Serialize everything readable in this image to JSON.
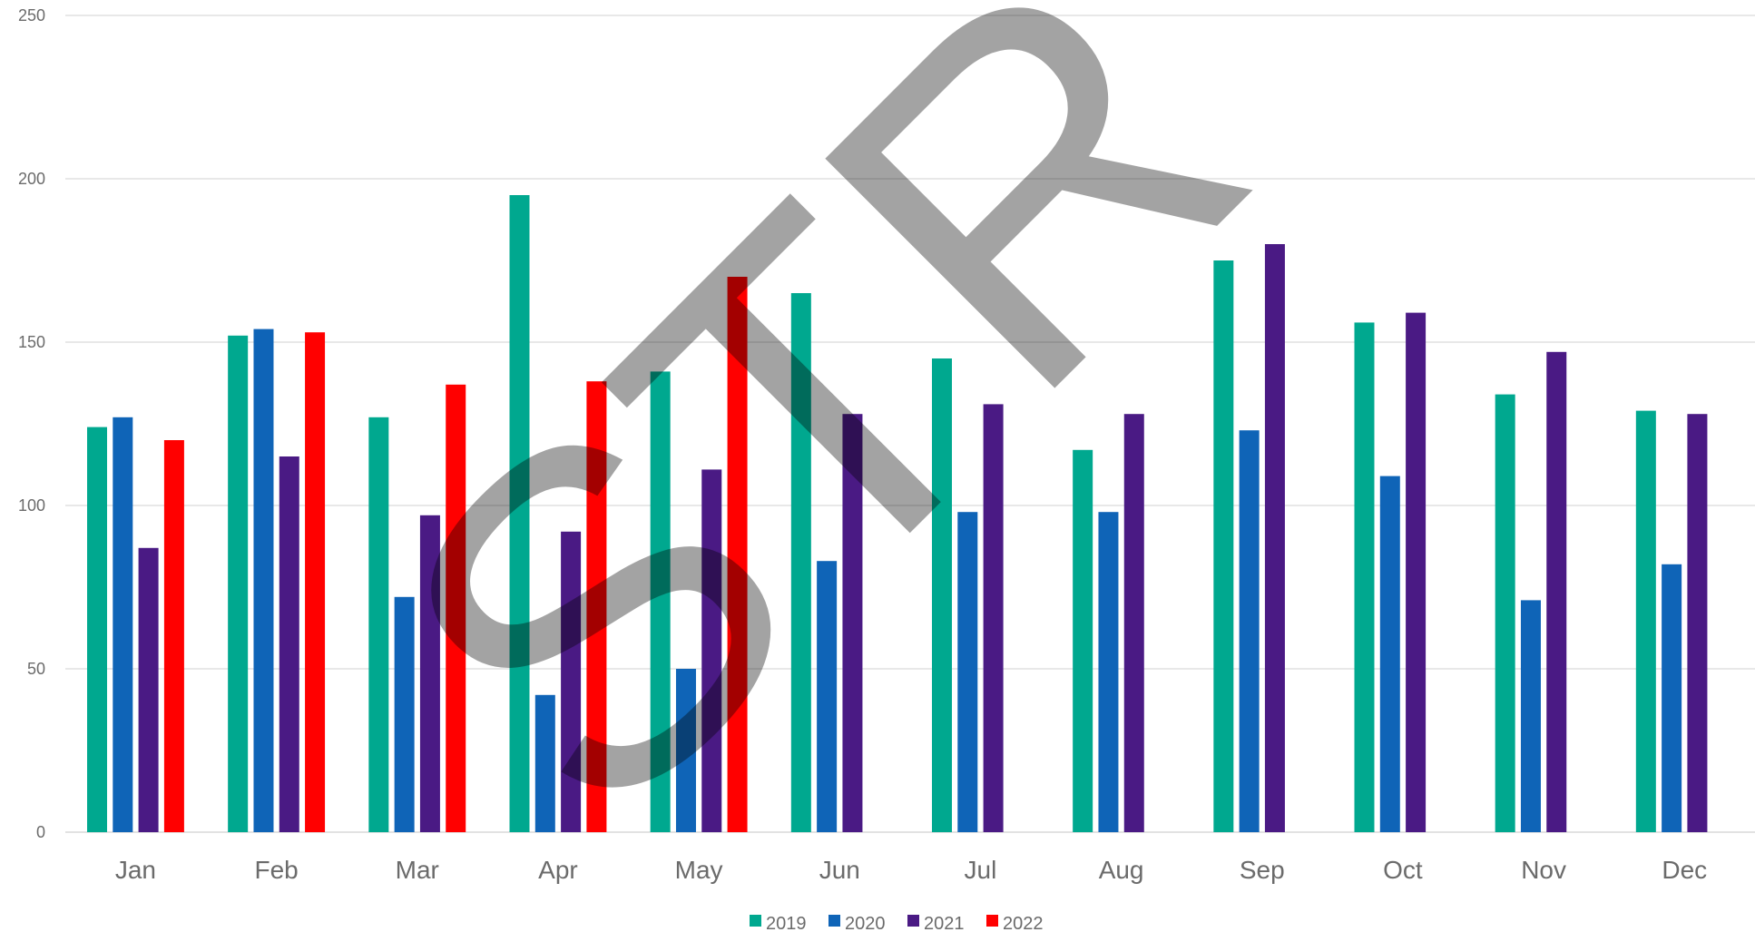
{
  "chart_data": {
    "type": "bar",
    "categories": [
      "Jan",
      "Feb",
      "Mar",
      "Apr",
      "May",
      "Jun",
      "Jul",
      "Aug",
      "Sep",
      "Oct",
      "Nov",
      "Dec"
    ],
    "series": [
      {
        "name": "2019",
        "color": "#00a88f",
        "values": [
          124,
          152,
          127,
          195,
          141,
          165,
          145,
          117,
          175,
          156,
          134,
          129
        ]
      },
      {
        "name": "2020",
        "color": "#0f64b7",
        "values": [
          127,
          154,
          72,
          42,
          50,
          83,
          98,
          98,
          123,
          109,
          71,
          82
        ]
      },
      {
        "name": "2021",
        "color": "#4a1a84",
        "values": [
          87,
          115,
          97,
          92,
          111,
          128,
          131,
          128,
          180,
          159,
          147,
          128
        ]
      },
      {
        "name": "2022",
        "color": "#ff0000",
        "values": [
          120,
          153,
          137,
          138,
          170,
          null,
          null,
          null,
          null,
          null,
          null,
          null
        ]
      }
    ],
    "yticks": [
      "0",
      "50",
      "100",
      "150",
      "200",
      "250"
    ],
    "ylim": [
      0,
      250
    ],
    "grid": true,
    "legend_position": "bottom",
    "title": "",
    "xlabel": "",
    "ylabel": ""
  },
  "watermark": {
    "text": "STR"
  }
}
